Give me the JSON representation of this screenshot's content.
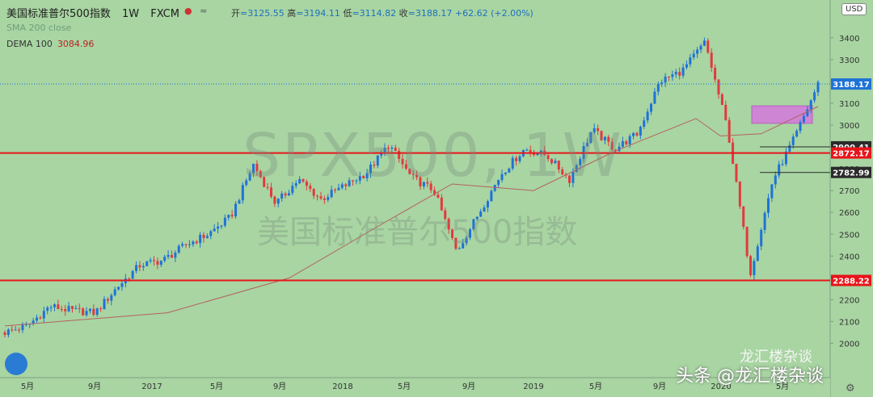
{
  "header": {
    "title": "美国标准普尔500指数",
    "interval": "1W",
    "exchange": "FXCM",
    "ohlc": {
      "o_label": "开",
      "o": "=3125.55",
      "h_label": "高",
      "h": "=3194.11",
      "l_label": "低",
      "l": "=3114.82",
      "c_label": "收",
      "c": "=3188.17",
      "chg": "+62.62 (+2.00%)"
    }
  },
  "indicators": {
    "hidden_label": "SMA 200 close",
    "dema_label": "DEMA 100",
    "dema_value": "3084.96"
  },
  "watermark": {
    "symbol": "SPX500, 1W",
    "name": "美国标准普尔500指数"
  },
  "currency": "USD",
  "source": {
    "wechat": "龙汇楼杂谈",
    "toutiao": "头条 @龙汇楼杂谈"
  },
  "colors": {
    "bg": "#a8d5a2",
    "up": "#1f72d6",
    "down": "#e2393e",
    "hline": "#e8141a",
    "dema": "#b5615f",
    "box": "#d27cd9"
  },
  "chart_data": {
    "type": "candlestick",
    "y_axis": {
      "ticks": [
        3400,
        3300,
        3200,
        3100,
        3000,
        2900,
        2800,
        2700,
        2600,
        2500,
        2400,
        2300,
        2200,
        2100,
        2000
      ],
      "range": [
        1940,
        3500
      ]
    },
    "x_axis": {
      "tick_labels": [
        "5月",
        "9月",
        "2017",
        "5月",
        "9月",
        "2018",
        "5月",
        "9月",
        "2019",
        "5月",
        "9月",
        "2020",
        "5月"
      ]
    },
    "last_price": 3188.17,
    "price_labels": [
      {
        "value": 3188.17,
        "text": "3188.17",
        "style": "blue"
      },
      {
        "value": 2900.41,
        "text": "2900.41",
        "style": "dark"
      },
      {
        "value": 2872.17,
        "text": "2872.17",
        "style": "red"
      },
      {
        "value": 2782.99,
        "text": "2782.99",
        "style": "dark"
      },
      {
        "value": 2288.22,
        "text": "2288.22",
        "style": "red"
      }
    ],
    "horizontal_lines": [
      {
        "value": 2872.17,
        "style": "red-thick"
      },
      {
        "value": 2288.22,
        "style": "red-thick"
      },
      {
        "value": 2900.41,
        "style": "dark-thin"
      },
      {
        "value": 2782.99,
        "style": "dark-thin"
      }
    ],
    "zone": {
      "y_from": 3008,
      "y_to": 3088
    },
    "path_dates": [
      "2016-03",
      "2016-05",
      "2016-07",
      "2016-09",
      "2016-11",
      "2017-01",
      "2017-03",
      "2017-05",
      "2017-07",
      "2017-09",
      "2017-11",
      "2018-01",
      "2018-02",
      "2018-03",
      "2018-04",
      "2018-06",
      "2018-07",
      "2018-09",
      "2018-10",
      "2018-11",
      "2018-12",
      "2019-01",
      "2019-02",
      "2019-04",
      "2019-05",
      "2019-06",
      "2019-07",
      "2019-08",
      "2019-10",
      "2019-12",
      "2020-01",
      "2020-02",
      "2020-03",
      "2020-03",
      "2020-04",
      "2020-05",
      "2020-06"
    ],
    "path_closes": [
      2050,
      2080,
      2170,
      2150,
      2140,
      2260,
      2360,
      2380,
      2450,
      2500,
      2580,
      2820,
      2640,
      2750,
      2660,
      2720,
      2780,
      2910,
      2760,
      2700,
      2420,
      2600,
      2780,
      2890,
      2860,
      2750,
      2980,
      2890,
      2960,
      3200,
      3250,
      3380,
      2980,
      2320,
      2750,
      2950,
      3188
    ],
    "dema": [
      [
        0,
        2080
      ],
      [
        0.2,
        2140
      ],
      [
        0.35,
        2300
      ],
      [
        0.47,
        2560
      ],
      [
        0.55,
        2730
      ],
      [
        0.65,
        2700
      ],
      [
        0.75,
        2880
      ],
      [
        0.85,
        3030
      ],
      [
        0.88,
        2950
      ],
      [
        0.93,
        2960
      ],
      [
        1,
        3085
      ]
    ]
  }
}
